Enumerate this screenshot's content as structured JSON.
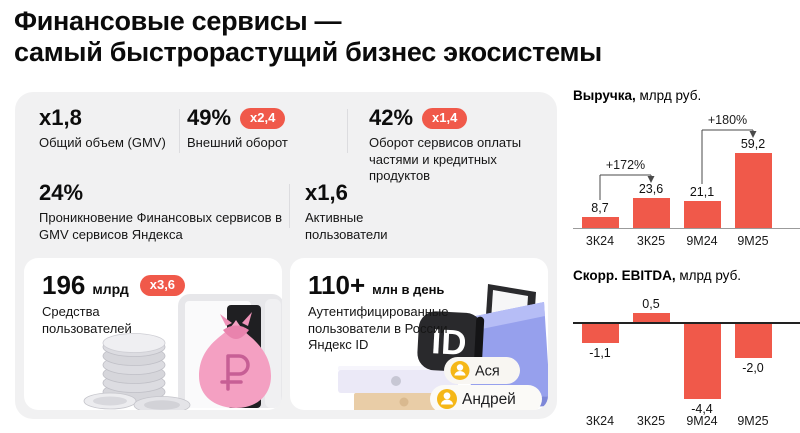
{
  "title": {
    "line1": "Финансовые сервисы —",
    "line2": "самый быстрорастущий бизнес экосистемы"
  },
  "colors": {
    "accent": "#f0594a",
    "panel_bg": "#f1f1f2",
    "card_bg": "#ffffff",
    "text": "#111111"
  },
  "metrics": [
    {
      "value": "x1,8",
      "badge": "",
      "label": "Общий объем (GMV)"
    },
    {
      "value": "49%",
      "badge": "x2,4",
      "label": "Внешний оборот"
    },
    {
      "value": "42%",
      "badge": "x1,4",
      "label": "Оборот сервисов оплаты частями и кредитных продуктов"
    },
    {
      "value": "24%",
      "badge": "",
      "label": "Проникновение Финансовых сервисов в GMV сервисов Яндекса"
    },
    {
      "value": "x1,6",
      "badge": "",
      "label": "Активные пользователи"
    }
  ],
  "highlight_cards": [
    {
      "value": "196",
      "unit": "млрд",
      "badge": "x3,6",
      "label": "Средства пользователей",
      "illustration": "coins-moneybag-safe",
      "currency_symbol": "₽"
    },
    {
      "value": "110+",
      "unit": "млн в день",
      "badge": "",
      "label": "Аутентифицированные пользователи в России Яндекс ID",
      "illustration": "yandex-id-organizer",
      "id_badge_text": "ID",
      "user_tags": [
        "Ася",
        "Андрей"
      ]
    }
  ],
  "chart_data": [
    {
      "type": "bar",
      "title": "Выручка,",
      "title_rest": " млрд руб.",
      "categories": [
        "3К24",
        "3К25",
        "9М24",
        "9М25"
      ],
      "values": [
        8.7,
        23.6,
        21.1,
        59.2
      ],
      "value_labels": [
        "8,7",
        "23,6",
        "21,1",
        "59,2"
      ],
      "bar_color": "#f0594a",
      "annotations": [
        {
          "text": "+172%",
          "from": 0,
          "to": 1
        },
        {
          "text": "+180%",
          "from": 2,
          "to": 3
        }
      ],
      "ylim": [
        0,
        65
      ],
      "grid": false,
      "axis": "baseline-bottom"
    },
    {
      "type": "bar",
      "title": "Скорр. EBITDA,",
      "title_rest": " млрд руб.",
      "categories": [
        "3К24",
        "3К25",
        "9М24",
        "9М25"
      ],
      "values": [
        -1.1,
        0.5,
        -4.4,
        -2.0
      ],
      "value_labels": [
        "-1,1",
        "0,5",
        "-4,4",
        "-2,0"
      ],
      "bar_color": "#f0594a",
      "annotations": [],
      "ylim": [
        -5,
        1
      ],
      "grid": false,
      "axis": "zero-line"
    }
  ]
}
